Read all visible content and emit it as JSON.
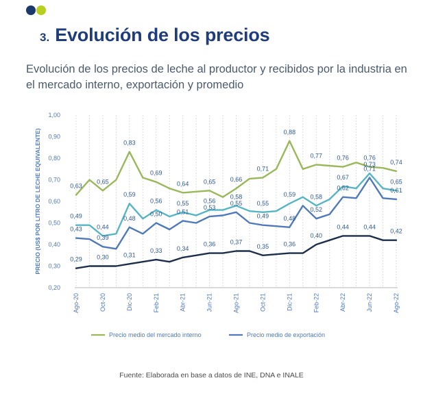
{
  "header": {
    "section_number": "3.",
    "section_title": "Evolución de los precios",
    "subtitle": "Evolución de los precios de leche al productor y recibidos por la industria en el mercado interno, exportación y promedio"
  },
  "source_note": "Fuente: Elaborada en base a datos de INE, DNA e INALE",
  "colors": {
    "brand_navy": "#1b3a6b",
    "brand_lime": "#b7cf1e",
    "title": "#1f3d7a"
  },
  "chart_data": {
    "type": "line",
    "title": "",
    "xlabel": "",
    "ylabel": "PRECIO (US$ POR LITRO DE LECHE EQUIVALENTE)",
    "ylim": [
      0.2,
      1.0
    ],
    "yticks": [
      "0,20",
      "0,30",
      "0,40",
      "0,50",
      "0,60",
      "0,70",
      "0,80",
      "0,90",
      "1,00"
    ],
    "grid": "vertical",
    "legend_position": "bottom",
    "x": [
      "Ago-20",
      "Sep-20",
      "Oct-20",
      "Nov-20",
      "Dic-20",
      "Ene-21",
      "Feb-21",
      "Mar-21",
      "Abr-21",
      "May-21",
      "Jun-21",
      "Jul-21",
      "Ago-21",
      "Sep-21",
      "Oct-21",
      "Nov-21",
      "Dic-21",
      "Ene-22",
      "Feb-22",
      "Mar-22",
      "Abr-22",
      "May-22",
      "Jun-22",
      "Jul-22",
      "Ago-22"
    ],
    "x_tick_labels": [
      "Ago-20",
      "Oct-20",
      "Dic-20",
      "Feb-21",
      "Abr-21",
      "Jun-21",
      "Ago-21",
      "Oct-21",
      "Dic-21",
      "Feb-22",
      "Abr-22",
      "Jun-22",
      "Ago-22"
    ],
    "series": [
      {
        "name": "Precio medio del mercado interno",
        "color": "#99b85a",
        "in_legend": true,
        "values": [
          0.63,
          0.7,
          0.65,
          0.7,
          0.83,
          0.71,
          0.69,
          0.66,
          0.64,
          0.645,
          0.65,
          0.62,
          0.66,
          0.705,
          0.71,
          0.75,
          0.88,
          0.75,
          0.77,
          0.765,
          0.76,
          0.78,
          0.76,
          0.755,
          0.74
        ],
        "labels": {
          "0": "0,63",
          "2": "0,65",
          "4": "0,83",
          "6": "0,69",
          "8": "0,64",
          "10": "0,65",
          "12": "0,66",
          "14": "0,71",
          "16": "0,88",
          "18": "0,77",
          "20": "0,76",
          "22": "0,76",
          "24": "0,74"
        }
      },
      {
        "name": "",
        "color": "#56b5c5",
        "in_legend": false,
        "values": [
          0.49,
          0.49,
          0.44,
          0.45,
          0.59,
          0.52,
          0.56,
          0.53,
          0.55,
          0.535,
          0.56,
          0.56,
          0.58,
          0.555,
          0.55,
          0.555,
          0.59,
          0.62,
          0.58,
          0.61,
          0.67,
          0.66,
          0.73,
          0.66,
          0.65
        ],
        "labels": {
          "0": "0,49",
          "2": "0,44",
          "4": "0,59",
          "6": "0,56",
          "8": "0,55",
          "10": "0,56",
          "12": "0,58",
          "14": "0,55",
          "16": "0,59",
          "18": "0,58",
          "20": "0,67",
          "22": "0,73",
          "24": "0,65"
        }
      },
      {
        "name": "Precio medio de exportación",
        "color": "#4f79ba",
        "in_legend": true,
        "values": [
          0.43,
          0.425,
          0.39,
          0.38,
          0.48,
          0.45,
          0.5,
          0.47,
          0.51,
          0.5,
          0.53,
          0.535,
          0.55,
          0.5,
          0.49,
          0.485,
          0.48,
          0.58,
          0.52,
          0.54,
          0.62,
          0.615,
          0.71,
          0.615,
          0.61
        ],
        "labels": {
          "0": "0,43",
          "2": "0,39",
          "4": "0,48",
          "6": "0,50",
          "8": "0,51",
          "10": "0,53",
          "12": "0,55",
          "14": "0,49",
          "16": "0,48",
          "18": "0,52",
          "20": "0,62",
          "22": "0,71",
          "24": "0,61"
        }
      },
      {
        "name": "",
        "color": "#1c2e4a",
        "in_legend": false,
        "values": [
          0.29,
          0.3,
          0.3,
          0.3,
          0.31,
          0.32,
          0.33,
          0.32,
          0.34,
          0.35,
          0.36,
          0.36,
          0.37,
          0.37,
          0.35,
          0.355,
          0.36,
          0.36,
          0.4,
          0.42,
          0.44,
          0.44,
          0.44,
          0.42,
          0.42
        ],
        "labels": {
          "0": "0,29",
          "2": "0,30",
          "4": "0,31",
          "6": "0,33",
          "8": "0,34",
          "10": "0,36",
          "12": "0,37",
          "14": "0,35",
          "16": "0,36",
          "18": "0,40",
          "20": "0,44",
          "22": "0,44",
          "24": "0,42"
        }
      }
    ]
  }
}
